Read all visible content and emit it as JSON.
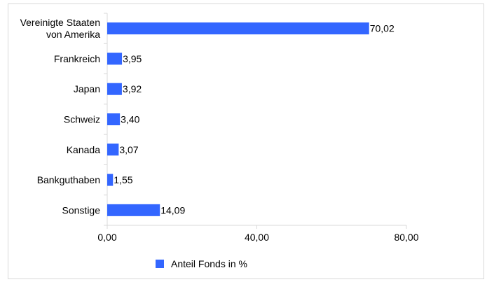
{
  "chart_data": {
    "type": "bar",
    "orientation": "horizontal",
    "categories": [
      [
        "Vereinigte Staaten",
        "von Amerika"
      ],
      [
        "Frankreich"
      ],
      [
        "Japan"
      ],
      [
        "Schweiz"
      ],
      [
        "Kanada"
      ],
      [
        "Bankguthaben"
      ],
      [
        "Sonstige"
      ]
    ],
    "series": [
      {
        "name": "Anteil Fonds in %",
        "color": "#3366ff",
        "values": [
          70.02,
          3.95,
          3.92,
          3.4,
          3.07,
          1.55,
          14.09
        ],
        "value_labels": [
          "70,02",
          "3,95",
          "3,92",
          "3,40",
          "3,07",
          "1,55",
          "14,09"
        ]
      }
    ],
    "xlim": [
      0,
      80
    ],
    "xticks": [
      0,
      40,
      80
    ],
    "xtick_labels": [
      "0,00",
      "40,00",
      "80,00"
    ],
    "grid": false,
    "legend_position": "bottom"
  }
}
